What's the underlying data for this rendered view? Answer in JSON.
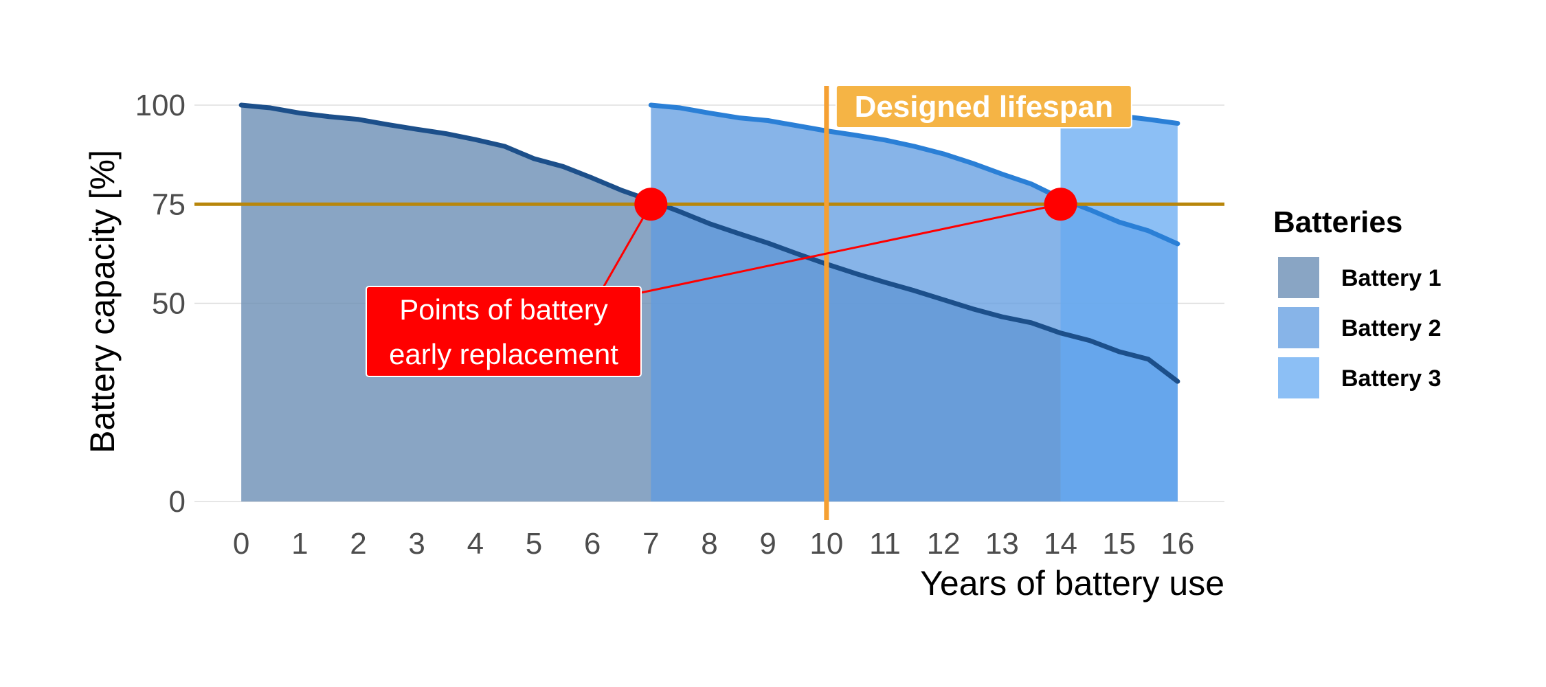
{
  "chart_data": {
    "type": "area",
    "title": "",
    "xlabel": "Years of battery use",
    "ylabel": "Battery capacity [%]",
    "xlim": [
      -0.8,
      16.8
    ],
    "ylim": [
      0,
      100
    ],
    "x_ticks": [
      0,
      1,
      2,
      3,
      4,
      5,
      6,
      7,
      8,
      9,
      10,
      11,
      12,
      13,
      14,
      15,
      16
    ],
    "y_ticks": [
      0,
      50,
      75,
      100
    ],
    "grid": "horizontal",
    "legend": {
      "title": "Batteries",
      "placement": "right",
      "entries": [
        "Battery 1",
        "Battery 2",
        "Battery 3"
      ]
    },
    "series": [
      {
        "name": "Battery 1",
        "fill": "#6b8fb5",
        "fill_opacity": 0.8,
        "line": "#1c4f8a",
        "x": [
          0,
          0.5,
          1,
          1.5,
          2,
          2.5,
          3,
          3.5,
          4,
          4.5,
          5,
          5.5,
          6,
          6.5,
          7,
          7.5,
          8,
          8.5,
          9,
          9.5,
          10,
          10.5,
          11,
          11.5,
          12,
          12.5,
          13,
          13.5,
          14,
          14.5,
          15,
          15.5,
          16
        ],
        "values": [
          100,
          99.3,
          98,
          97.1,
          96.4,
          95.1,
          93.9,
          92.8,
          91.3,
          89.6,
          86.5,
          84.5,
          81.6,
          78.5,
          75.9,
          73.1,
          70.1,
          67.6,
          65.2,
          62.5,
          59.9,
          57.5,
          55.3,
          53.2,
          50.9,
          48.6,
          46.6,
          45.1,
          42.5,
          40.6,
          37.8,
          35.9,
          30.3
        ]
      },
      {
        "name": "Battery 2",
        "fill": "#5f9be0",
        "fill_opacity": 0.75,
        "line": "#2a7fd6",
        "x": [
          7,
          7.5,
          8,
          8.5,
          9,
          9.5,
          10,
          10.5,
          11,
          11.5,
          12,
          12.5,
          13,
          13.5,
          14,
          14.5,
          15,
          15.5,
          16
        ],
        "values": [
          100,
          99.3,
          98,
          96.8,
          96.1,
          94.8,
          93.5,
          92.4,
          91.2,
          89.6,
          87.7,
          85.3,
          82.6,
          80.1,
          76.5,
          73.6,
          70.5,
          68.3,
          65
        ]
      },
      {
        "name": "Battery 3",
        "fill": "#66aaf2",
        "fill_opacity": 0.75,
        "line": "#2a7fd6",
        "x": [
          14,
          14.5,
          15,
          15.5,
          16
        ],
        "values": [
          100,
          98.6,
          97.3,
          96.4,
          95.4
        ]
      }
    ],
    "reference_lines": [
      {
        "orientation": "horizontal",
        "value": 75,
        "color": "#b8860b"
      },
      {
        "orientation": "vertical",
        "value": 10,
        "color": "#f5a033"
      }
    ],
    "replacement_points": [
      {
        "x": 7,
        "y": 75
      },
      {
        "x": 14,
        "y": 75
      }
    ],
    "annotations": {
      "lifespan_label": "Designed lifespan",
      "lifespan_color": "#f5b445",
      "replacement_label_line1": "Points of battery",
      "replacement_label_line2": "early replacement",
      "replacement_color": "#ff0000"
    }
  }
}
